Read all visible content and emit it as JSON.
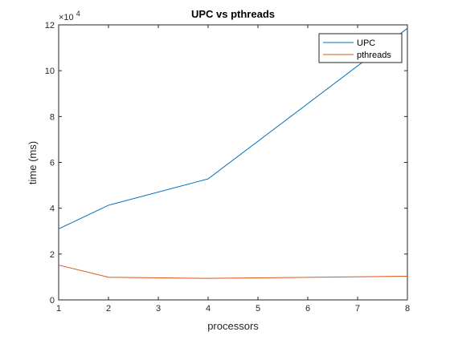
{
  "chart_data": {
    "type": "line",
    "title": "UPC vs pthreads",
    "xlabel": "processors",
    "ylabel": "time (ms)",
    "y_exponent_label": "×10",
    "y_exponent_power": "4",
    "x": [
      1,
      2,
      4,
      8
    ],
    "xlim": [
      1,
      8
    ],
    "ylim": [
      0,
      120000
    ],
    "xticks": [
      "1",
      "2",
      "3",
      "4",
      "5",
      "6",
      "7",
      "8"
    ],
    "yticks": [
      "0",
      "2",
      "4",
      "6",
      "8",
      "10",
      "12"
    ],
    "grid": false,
    "legend_position": "top-right",
    "series": [
      {
        "name": "UPC",
        "color": "#0072BD",
        "values": [
          31000,
          41300,
          52800,
          118500
        ]
      },
      {
        "name": "pthreads",
        "color": "#D95319",
        "values": [
          15200,
          9900,
          9400,
          10300
        ]
      }
    ]
  }
}
